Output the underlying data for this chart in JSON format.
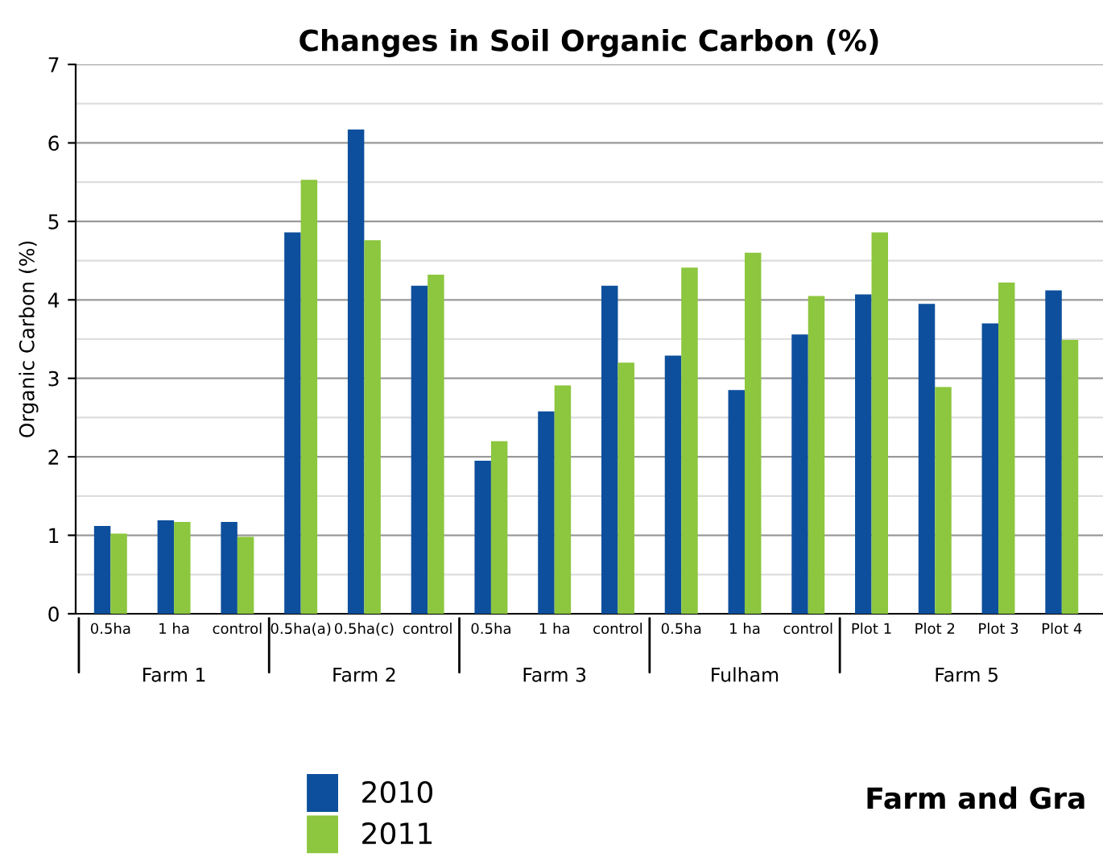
{
  "chart_data": {
    "type": "bar",
    "title": "Changes in Soil Organic Carbon (%)",
    "ylabel": "Organic Carbon (%)",
    "categories": [
      "0.5ha",
      "1 ha",
      "control",
      "0.5ha(a)",
      "0.5ha(c)",
      "control",
      "0.5ha",
      "1 ha",
      "control",
      "0.5ha",
      "1 ha",
      "control",
      "Plot 1",
      "Plot 2",
      "Plot 3",
      "Plot 4"
    ],
    "series": [
      {
        "name": "2010",
        "color": "#0d4f9c",
        "values": [
          1.12,
          1.19,
          1.17,
          4.86,
          6.17,
          4.18,
          1.95,
          2.58,
          4.18,
          3.29,
          2.85,
          3.56,
          4.07,
          3.95,
          3.7,
          4.12
        ]
      },
      {
        "name": "2011",
        "color": "#8dc63f",
        "values": [
          1.02,
          1.17,
          0.98,
          5.53,
          4.76,
          4.32,
          2.2,
          2.91,
          3.2,
          4.41,
          4.6,
          4.05,
          4.86,
          2.89,
          4.22,
          3.49
        ]
      }
    ],
    "ylim": [
      0,
      7
    ],
    "yticks": [
      0,
      1,
      2,
      3,
      4,
      5,
      6,
      7
    ],
    "grid": "y",
    "legend": "bottom left",
    "annotations": [
      "Farm 1",
      "Farm 2",
      "Farm 3",
      "Fulham",
      "Farm 5",
      "Farm and Gra"
    ]
  }
}
